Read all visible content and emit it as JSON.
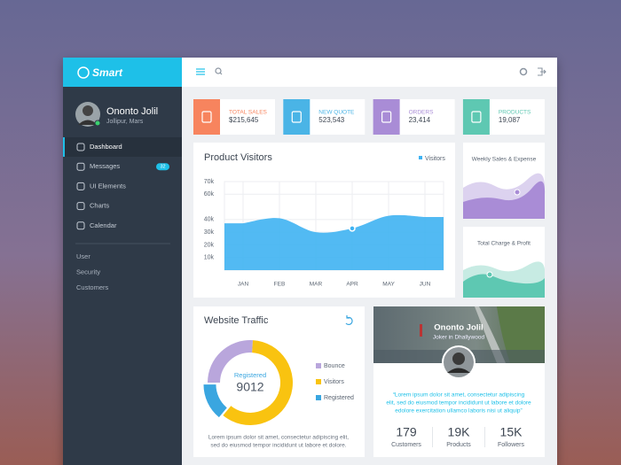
{
  "brand": "Smart",
  "user": {
    "name": "Ononto Jolil",
    "location": "Jollipur, Mars"
  },
  "nav": [
    {
      "label": "Dashboard"
    },
    {
      "label": "Messages",
      "badge": "32"
    },
    {
      "label": "UI Elements"
    },
    {
      "label": "Charts"
    },
    {
      "label": "Calendar"
    }
  ],
  "nav_secondary": [
    "User",
    "Security",
    "Customers"
  ],
  "stats": [
    {
      "label": "TOTAL SALES",
      "value": "$215,645",
      "color": "#f7845e"
    },
    {
      "label": "NEW QUOTE",
      "value": "523,543",
      "color": "#4ab4e6"
    },
    {
      "label": "ORDERS",
      "value": "23,414",
      "color": "#a98cd6"
    },
    {
      "label": "PRODUCTS",
      "value": "19,087",
      "color": "#5ec8b2"
    }
  ],
  "visitors_chart": {
    "type": "area",
    "title": "Product Visitors",
    "legend": "Visitors",
    "categories": [
      "JAN",
      "FEB",
      "MAR",
      "APR",
      "MAY",
      "JUN"
    ],
    "values": [
      37,
      41,
      30,
      33,
      43,
      42
    ],
    "color": "#3fb3f2",
    "ylim": [
      0,
      70
    ],
    "yticks": [
      {
        "value": 70,
        "label": "70k"
      },
      {
        "value": 60,
        "label": "60k"
      },
      {
        "value": 40,
        "label": "40k"
      },
      {
        "value": 30,
        "label": "30k"
      },
      {
        "value": 20,
        "label": "20k"
      },
      {
        "value": 10,
        "label": "10k"
      }
    ],
    "grid": true
  },
  "weekly_chart": {
    "title": "Weekly Sales & Expense"
  },
  "charge_chart": {
    "title": "Total Charge & Profit"
  },
  "traffic": {
    "type": "donut",
    "title": "Website Traffic",
    "center_label": "Registered",
    "center_value": "9012",
    "series": [
      {
        "name": "Bounce",
        "color": "#b9a6dc",
        "value": 26
      },
      {
        "name": "Visitors",
        "color": "#f9c310",
        "value": 60
      },
      {
        "name": "Registered",
        "color": "#3aa6e0",
        "value": 14
      }
    ],
    "text": [
      "Lorem ipsum dolor sit amet, consectetur adipiscing elit,",
      "sed do eiusmod tempor incididunt ut labore et dolore."
    ]
  },
  "profile": {
    "name": "Ononto Jolil",
    "role": "Joker in Dhallywood",
    "text": [
      "“Lorem ipsum dolor sit amet, consectetur adipiscing",
      "elit, sed do eiusmod tempor incididunt ut labore et dolore",
      "edolore exercitation ullamco laboris nisi ut aliquip”"
    ],
    "stats": [
      {
        "value": "179",
        "label": "Customers"
      },
      {
        "value": "19K",
        "label": "Products"
      },
      {
        "value": "15K",
        "label": "Followers"
      }
    ]
  }
}
